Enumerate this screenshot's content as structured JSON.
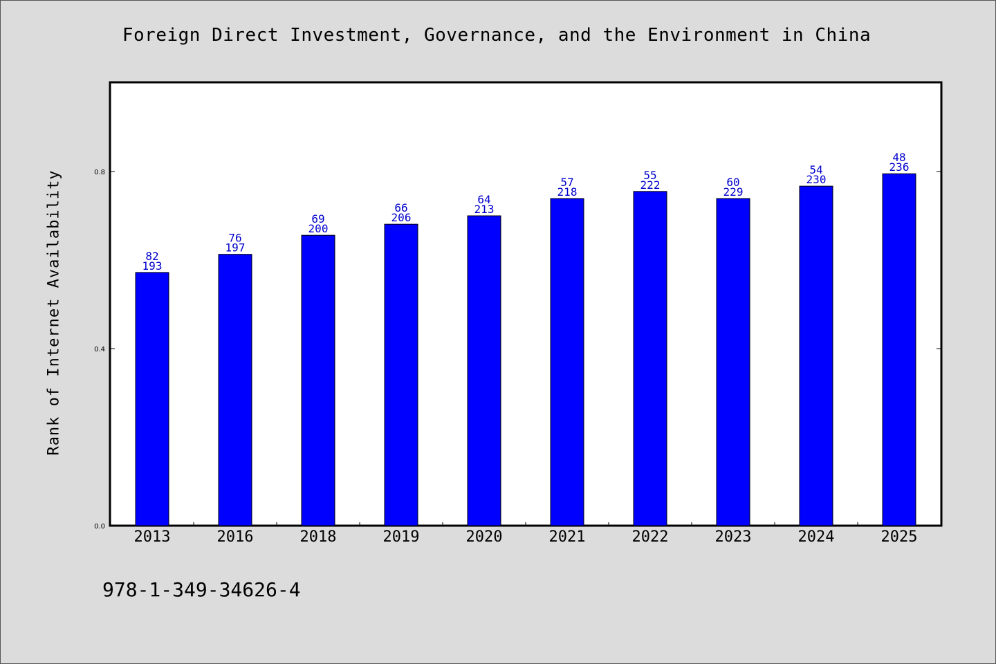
{
  "chart_data": {
    "type": "bar",
    "title": "Foreign Direct Investment, Governance, and the Environment in China",
    "xlabel": "",
    "ylabel": "Rank of Internet Availability",
    "categories": [
      "2013",
      "2016",
      "2018",
      "2019",
      "2020",
      "2021",
      "2022",
      "2023",
      "2024",
      "2025"
    ],
    "values": [
      0.572,
      0.613,
      0.656,
      0.681,
      0.7,
      0.739,
      0.755,
      0.739,
      0.767,
      0.795
    ],
    "labels_top": [
      "82",
      "76",
      "69",
      "66",
      "64",
      "57",
      "55",
      "60",
      "54",
      "48"
    ],
    "labels_bottom": [
      "193",
      "197",
      "200",
      "206",
      "213",
      "218",
      "222",
      "229",
      "230",
      "236"
    ],
    "ylim": [
      0.0,
      1.0
    ],
    "yticks": [
      "0.0",
      "0.4",
      "0.8"
    ],
    "ytick_values": [
      0.0,
      0.4,
      0.8
    ],
    "grid": false,
    "bar_color": "#0000ff",
    "label_color": "#0000cc"
  },
  "footer": {
    "isbn": "978-1-349-34626-4"
  }
}
